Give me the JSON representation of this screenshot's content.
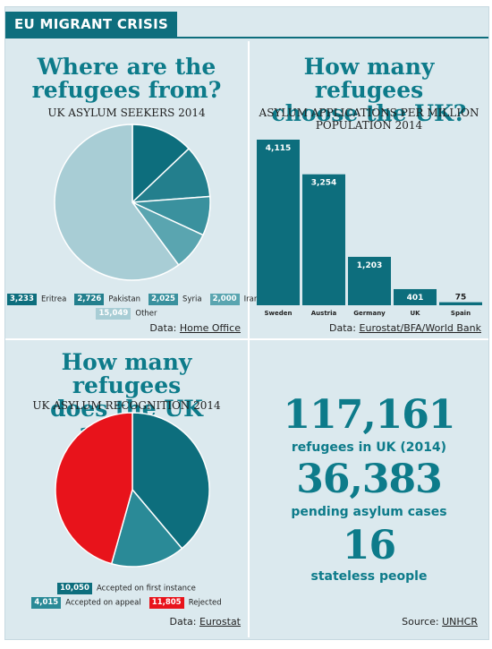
{
  "header": {
    "title": "EU MIGRANT CRISIS"
  },
  "colors": {
    "teal": "#0d6e7d",
    "red": "#e8131b",
    "panel_bg": "#dbe9ee"
  },
  "panel1": {
    "title_line1": "Where are the",
    "title_line2": "refugees from?",
    "subtitle": "UK ASYLUM SEEKERS 2014",
    "legend": [
      {
        "value": "3,233",
        "label": "Eritrea"
      },
      {
        "value": "2,726",
        "label": "Pakistan"
      },
      {
        "value": "2,025",
        "label": "Syria"
      },
      {
        "value": "2,000",
        "label": "Iran"
      },
      {
        "value": "15,049",
        "label": "Other"
      }
    ],
    "source_prefix": "Data:",
    "source_link": "Home Office"
  },
  "panel2": {
    "title_line1": "How many refugees",
    "title_line2": "choose the UK?",
    "subtitle_line1": "ASYLUM APPLICATIONS PER MILLION",
    "subtitle_line2": "POPULATION 2014",
    "source_prefix": "Data:",
    "source_link": "Eurostat/BFA/World Bank"
  },
  "panel3": {
    "title_line1": "How many refugees",
    "title_line2": "does the UK accept?",
    "subtitle": "UK ASYLUM RECOGNITION 2014",
    "legend": [
      {
        "value": "10,050",
        "label": "Accepted on first instance"
      },
      {
        "value": "4,015",
        "label": "Accepted on appeal"
      },
      {
        "value": "11,805",
        "label": "Rejected"
      }
    ],
    "source_prefix": "Data:",
    "source_link": "Eurostat"
  },
  "panel4": {
    "stat1_value": "117,161",
    "stat1_label": "refugees in UK (2014)",
    "stat2_value": "36,383",
    "stat2_label": "pending asylum cases",
    "stat3_value": "16",
    "stat3_label": "stateless people",
    "source_prefix": "Source:",
    "source_link": "UNHCR"
  },
  "chart_data": [
    {
      "type": "pie",
      "title": "Where are the refugees from?",
      "subtitle": "UK ASYLUM SEEKERS 2014",
      "slices": [
        {
          "label": "Eritrea",
          "value": 3233,
          "color": "#0d6e7d"
        },
        {
          "label": "Pakistan",
          "value": 2726,
          "color": "#237f8d"
        },
        {
          "label": "Syria",
          "value": 2025,
          "color": "#3a919e"
        },
        {
          "label": "Iran",
          "value": 2000,
          "color": "#5aa5b0"
        },
        {
          "label": "Other",
          "value": 15049,
          "color": "#a8cdd5"
        }
      ]
    },
    {
      "type": "bar",
      "title": "How many refugees choose the UK?",
      "subtitle": "ASYLUM APPLICATIONS PER MILLION POPULATION 2014",
      "categories": [
        "Sweden",
        "Austria",
        "Germany",
        "UK",
        "Spain"
      ],
      "values": [
        4115,
        3254,
        1203,
        401,
        75
      ],
      "value_labels": [
        "4,115",
        "3,254",
        "1,203",
        "401",
        "75"
      ],
      "ylim": [
        0,
        4115
      ],
      "color": "#0d6e7d"
    },
    {
      "type": "pie",
      "title": "How many refugees does the UK accept?",
      "subtitle": "UK ASYLUM RECOGNITION 2014",
      "slices": [
        {
          "label": "Accepted on first instance",
          "value": 10050,
          "color": "#0d6e7d"
        },
        {
          "label": "Accepted on appeal",
          "value": 4015,
          "color": "#2a8a97"
        },
        {
          "label": "Rejected",
          "value": 11805,
          "color": "#e8131b"
        }
      ]
    }
  ]
}
